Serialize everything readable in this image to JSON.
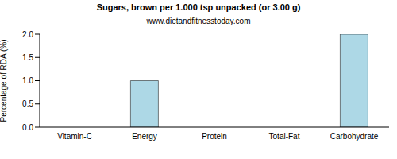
{
  "chart_data": {
    "type": "bar",
    "title": "Sugars, brown per 1.000 tsp unpacked (or 3.00 g)",
    "subtitle": "www.dietandfitnesstoday.com",
    "y_label": "Percentage of RDA (%)",
    "categories": [
      "Vitamin-C",
      "Energy",
      "Protein",
      "Total-Fat",
      "Carbohydrate"
    ],
    "values": [
      0,
      1.0,
      0,
      0,
      2.0
    ],
    "color": "#add8e6",
    "ylim": [
      0,
      2.0
    ],
    "yticks": [
      {
        "value": 0,
        "label": "0.0"
      },
      0.5,
      {
        "value": 1.0,
        "label": "1.0"
      },
      1.5,
      {
        "value": 2.0,
        "label": "2.0"
      }
    ],
    "grid": false
  }
}
